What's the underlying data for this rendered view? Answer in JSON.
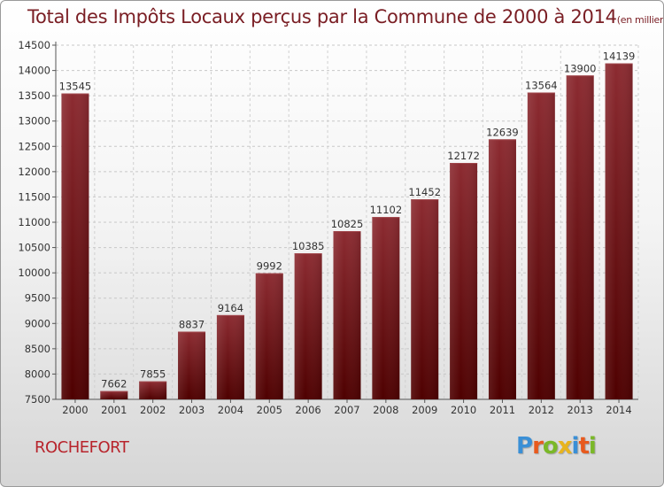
{
  "title": "Total des Impôts Locaux perçus par la Commune de 2000 à 2014",
  "title_unit": "(en milliers d'€)",
  "commune": "ROCHEFORT",
  "logo": {
    "letters": [
      "P",
      "r",
      "o",
      "x",
      "i",
      "t",
      "i"
    ],
    "colors": [
      "#3a8fd6",
      "#e85a1e",
      "#7ab828",
      "#e8b41e",
      "#3a8fd6",
      "#e85a1e",
      "#7ab828"
    ]
  },
  "chart_data": {
    "type": "bar",
    "title": "Total des Impôts Locaux perçus par la Commune de 2000 à 2014",
    "categories": [
      "2000",
      "2001",
      "2002",
      "2003",
      "2004",
      "2005",
      "2006",
      "2007",
      "2008",
      "2009",
      "2010",
      "2011",
      "2012",
      "2013",
      "2014"
    ],
    "values": [
      13545,
      7662,
      7855,
      8837,
      9164,
      9992,
      10385,
      10825,
      11102,
      11452,
      12172,
      12639,
      13564,
      13900,
      14139
    ],
    "xlabel": "",
    "ylabel": "",
    "ylim": [
      7500,
      14500
    ],
    "yticks": [
      7500,
      8000,
      8500,
      9000,
      9500,
      10000,
      10500,
      11000,
      11500,
      12000,
      12500,
      13000,
      13500,
      14000,
      14500
    ],
    "grid": true,
    "bar_color": "#7a1a1e"
  }
}
